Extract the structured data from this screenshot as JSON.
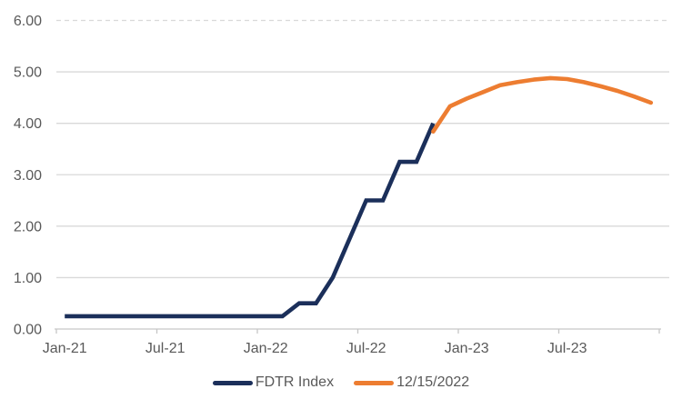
{
  "chart_data": {
    "type": "line",
    "title": "",
    "xlabel": "",
    "ylabel": "",
    "ylim": [
      0,
      6
    ],
    "y_tick_step": 1,
    "y_tick_labels": [
      "0.00",
      "1.00",
      "2.00",
      "3.00",
      "4.00",
      "5.00",
      "6.00"
    ],
    "x_tick_labels": [
      "Jan-21",
      "Jul-21",
      "Jan-22",
      "Jul-22",
      "Jan-23",
      "Jul-23"
    ],
    "grid": "horizontal",
    "top_gridline_style": "dashed",
    "legend_position": "bottom-center",
    "categories": [
      "Jan-21",
      "Feb-21",
      "Mar-21",
      "Apr-21",
      "May-21",
      "Jun-21",
      "Jul-21",
      "Aug-21",
      "Sep-21",
      "Oct-21",
      "Nov-21",
      "Dec-21",
      "Jan-22",
      "Feb-22",
      "Mar-22",
      "Apr-22",
      "May-22",
      "Jun-22",
      "Jul-22",
      "Aug-22",
      "Sep-22",
      "Oct-22",
      "Nov-22",
      "Dec-22",
      "Jan-23",
      "Feb-23",
      "Mar-23",
      "Apr-23",
      "May-23",
      "Jun-23",
      "Jul-23",
      "Aug-23",
      "Sep-23",
      "Oct-23",
      "Nov-23",
      "Dec-23"
    ],
    "series": [
      {
        "name": "FDTR Index",
        "color": "#1B2F5A",
        "values": [
          0.25,
          0.25,
          0.25,
          0.25,
          0.25,
          0.25,
          0.25,
          0.25,
          0.25,
          0.25,
          0.25,
          0.25,
          0.25,
          0.25,
          0.5,
          0.5,
          1.0,
          1.75,
          2.5,
          2.5,
          3.25,
          3.25,
          4.0,
          null,
          null,
          null,
          null,
          null,
          null,
          null,
          null,
          null,
          null,
          null,
          null,
          null
        ]
      },
      {
        "name": "12/15/2022",
        "color": "#ED7D31",
        "values": [
          null,
          null,
          null,
          null,
          null,
          null,
          null,
          null,
          null,
          null,
          null,
          null,
          null,
          null,
          null,
          null,
          null,
          null,
          null,
          null,
          null,
          null,
          3.84,
          4.33,
          4.48,
          4.61,
          4.74,
          4.8,
          4.85,
          4.88,
          4.86,
          4.8,
          4.72,
          4.63,
          4.52,
          4.4
        ]
      }
    ],
    "colors": {
      "gridline": "#D9D9D9",
      "axis_line": "#C6C6C6",
      "tick_mark": "#C6C6C6",
      "axis_text": "#595959",
      "background": "#FFFFFF"
    }
  }
}
